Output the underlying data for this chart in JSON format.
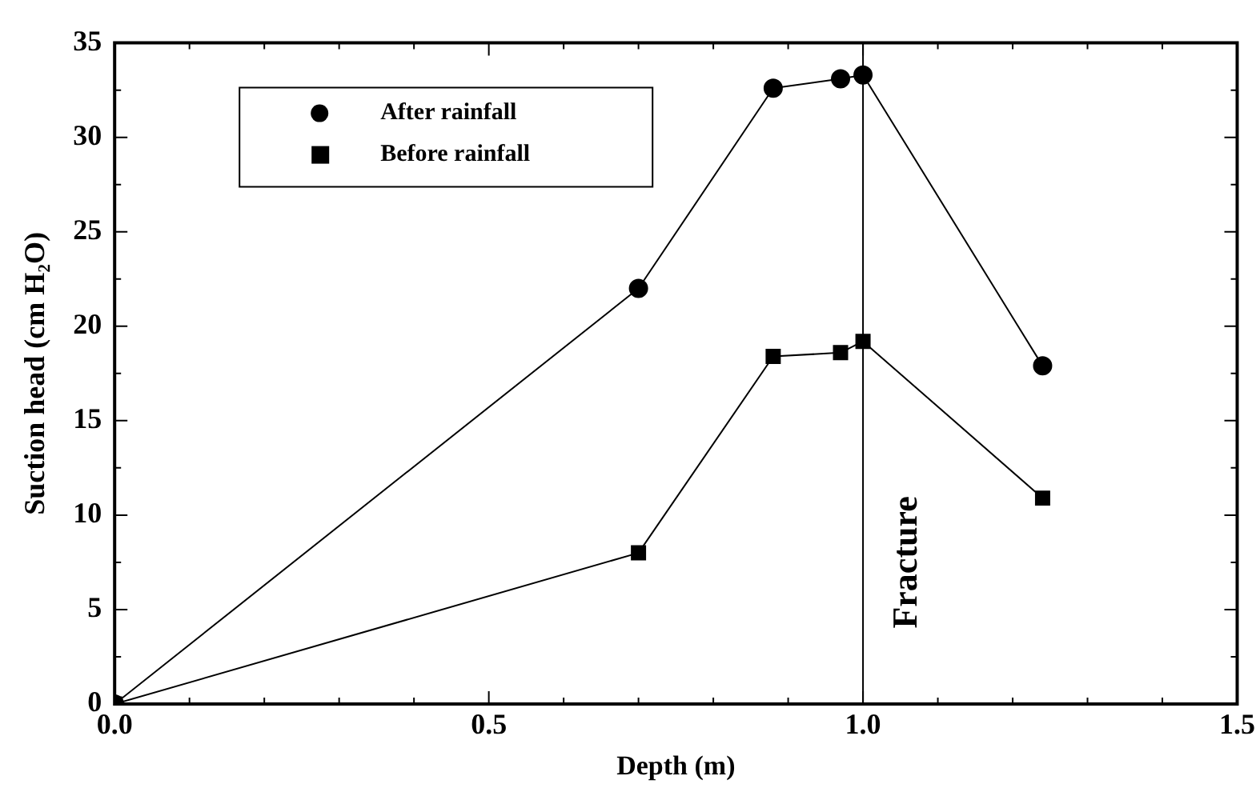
{
  "chart_data": {
    "type": "line",
    "xlabel": "Depth (m)",
    "ylabel": "Suction head (cm H₂O)",
    "xlim": [
      0,
      1.5
    ],
    "ylim": [
      0,
      35
    ],
    "xticks": [
      {
        "value": 0,
        "label": "0.0"
      },
      {
        "value": 0.5,
        "label": "0.5"
      },
      {
        "value": 1,
        "label": "1.0"
      },
      {
        "value": 1.5,
        "label": "1.5"
      }
    ],
    "yticks": [
      0,
      5,
      10,
      15,
      20,
      25,
      30,
      35
    ],
    "grid": false,
    "legend": "top left",
    "line_style": "solid",
    "series": [
      {
        "name": "After rainfall",
        "color": "#000000",
        "marker": "circle",
        "x": [
          0,
          0.7,
          0.88,
          0.97,
          1.0,
          1.24
        ],
        "values": [
          0,
          22,
          32.6,
          33.1,
          33.3,
          17.9
        ]
      },
      {
        "name": "Before rainfall",
        "color": "#000000",
        "marker": "square",
        "x": [
          0,
          0.7,
          0.88,
          0.97,
          1.0,
          1.24
        ],
        "values": [
          0,
          8,
          18.4,
          18.6,
          19.2,
          10.9
        ]
      }
    ],
    "ref_lines": [
      {
        "axis": "x",
        "value": 1.0,
        "label": "Fracture",
        "color": "#000000"
      }
    ]
  }
}
